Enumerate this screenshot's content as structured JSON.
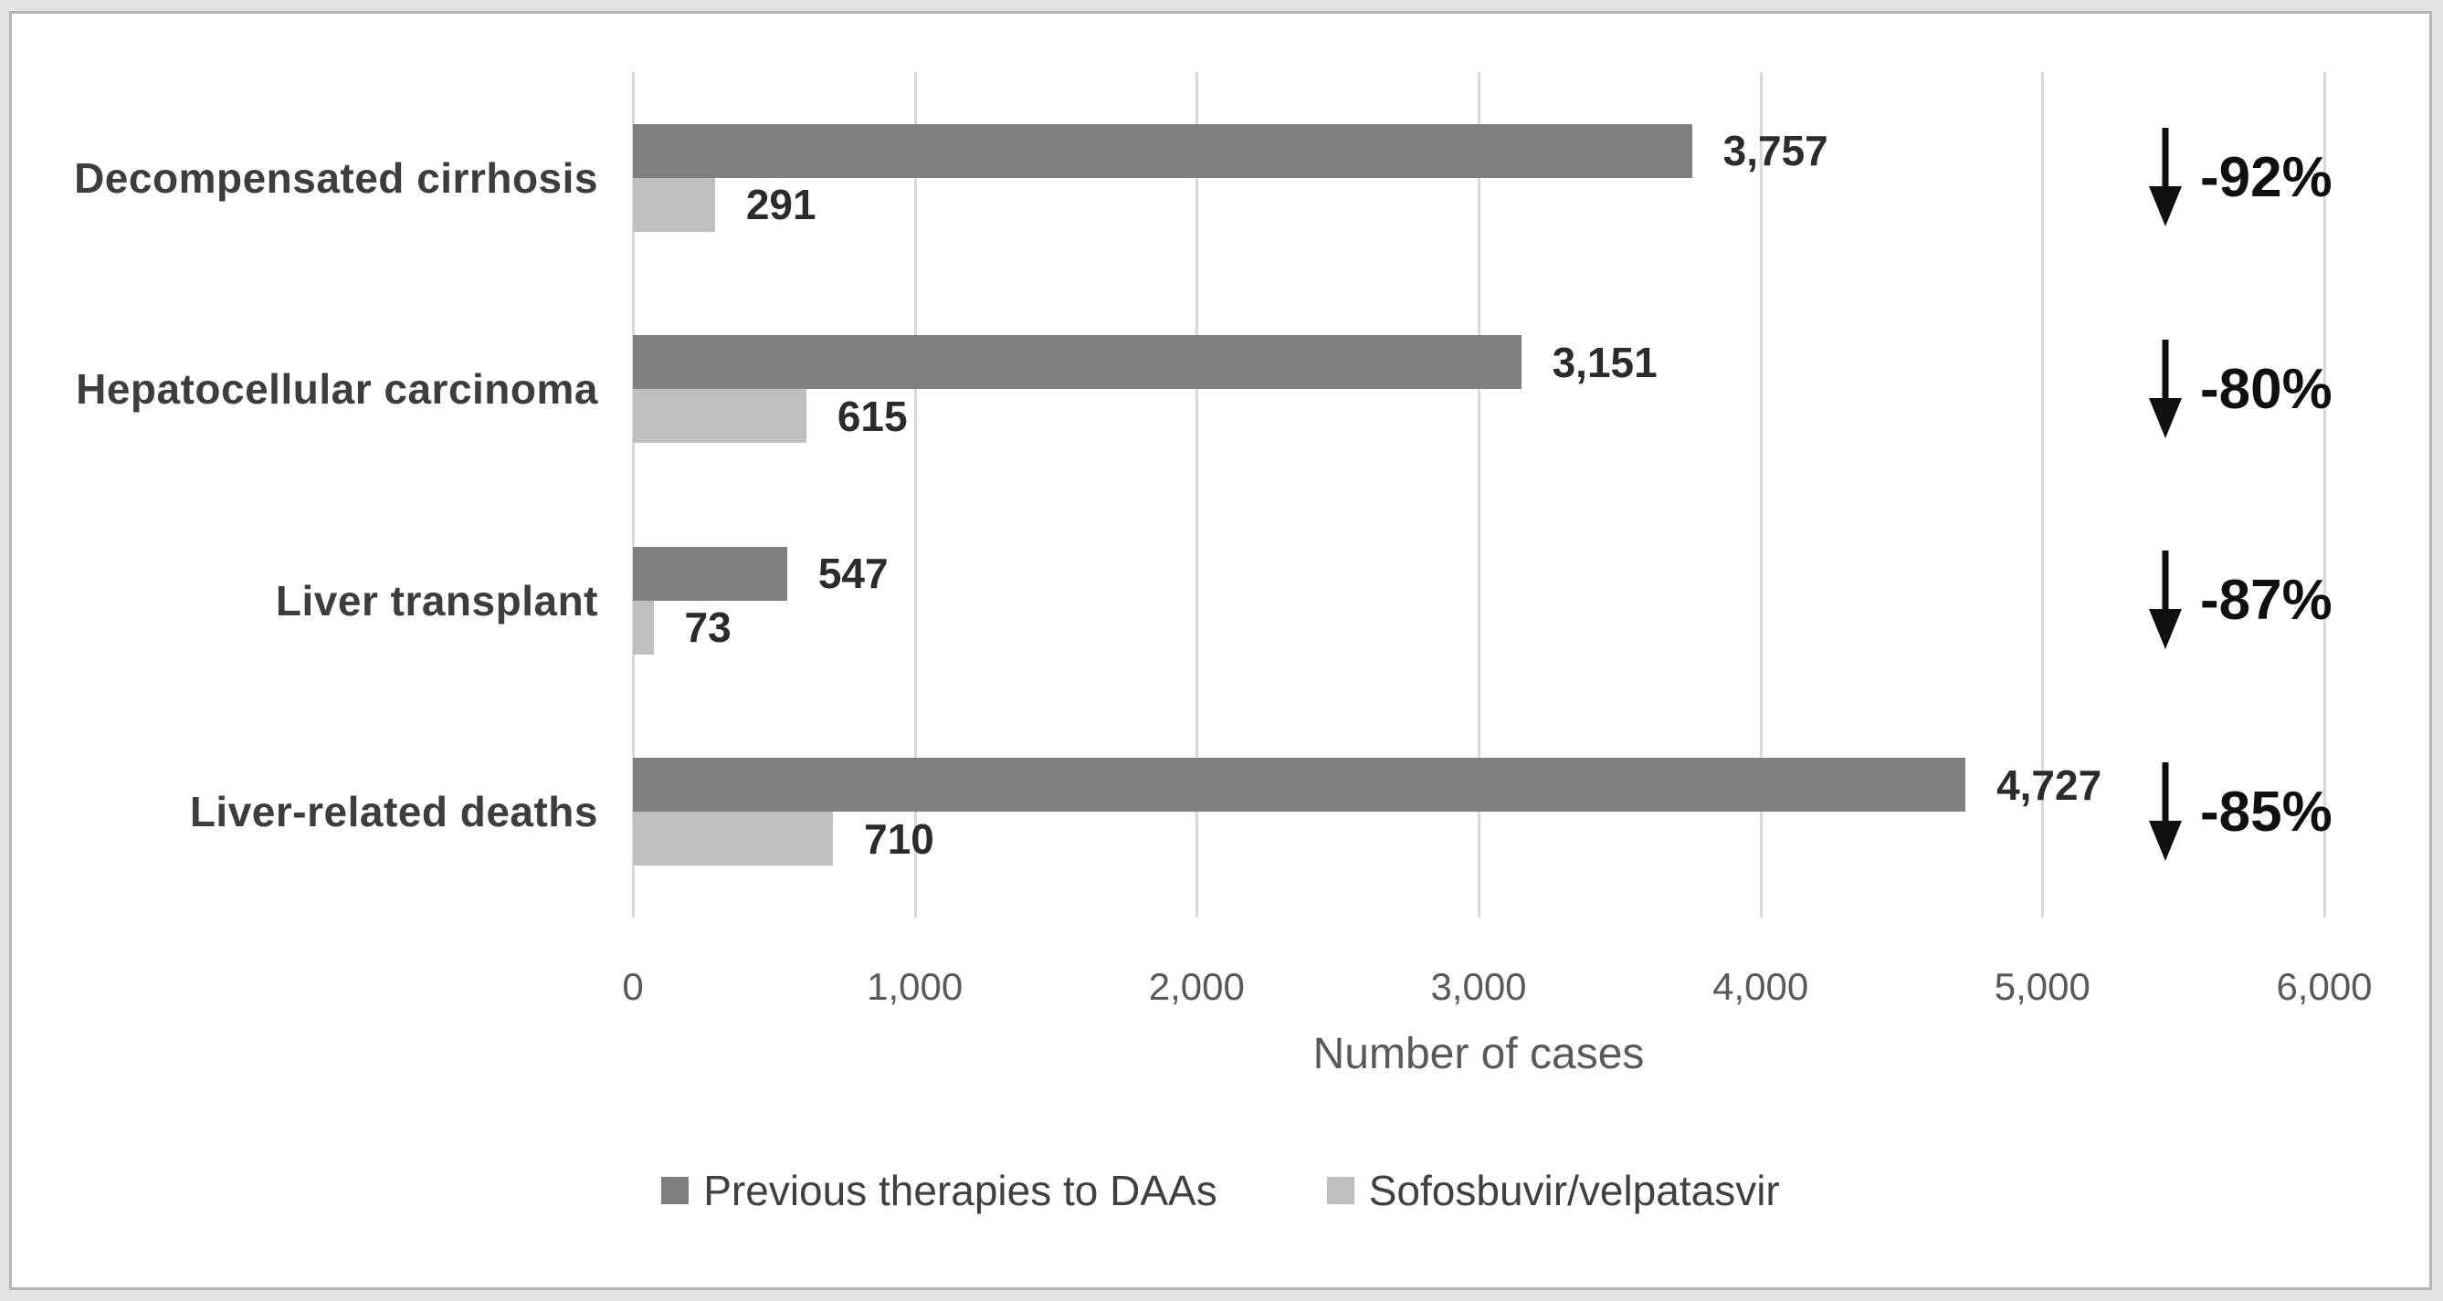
{
  "chart_data": {
    "type": "bar",
    "orientation": "horizontal",
    "categories": [
      "Decompensated cirrhosis",
      "Hepatocellular carcinoma",
      "Liver transplant",
      "Liver-related deaths"
    ],
    "series": [
      {
        "name": "Previous therapies to DAAs",
        "color": "#7f7f7f",
        "values": [
          3757,
          3151,
          547,
          4727
        ],
        "labels": [
          "3,757",
          "3,151",
          "547",
          "4,727"
        ]
      },
      {
        "name": "Sofosbuvir/velpatasvir",
        "color": "#bfbfbf",
        "values": [
          291,
          615,
          73,
          710
        ],
        "labels": [
          "291",
          "615",
          "73",
          "710"
        ]
      }
    ],
    "pct_change": [
      "-92%",
      "-80%",
      "-87%",
      "-85%"
    ],
    "xlabel": "Number of cases",
    "xlim": [
      0,
      6000
    ],
    "xticks": [
      0,
      1000,
      2000,
      3000,
      4000,
      5000,
      6000
    ],
    "xtick_labels": [
      "0",
      "1,000",
      "2,000",
      "3,000",
      "4,000",
      "5,000",
      "6,000"
    ],
    "grid": true,
    "legend_position": "bottom",
    "annotation_icon": "down-arrow"
  },
  "colors": {
    "series_dark": "#7f7f7f",
    "series_light": "#bfbfbf",
    "gridline": "#d9d9d9",
    "category_text": "#3d3d3d",
    "value_text": "#2b2b2b",
    "tick_text": "#595959",
    "axis_title_text": "#595959",
    "legend_text": "#404040",
    "pct_text": "#0f0f0f",
    "arrow": "#0f0f0f",
    "frame_outer": "#e4e4e4",
    "frame_border": "#b5b5b5"
  }
}
